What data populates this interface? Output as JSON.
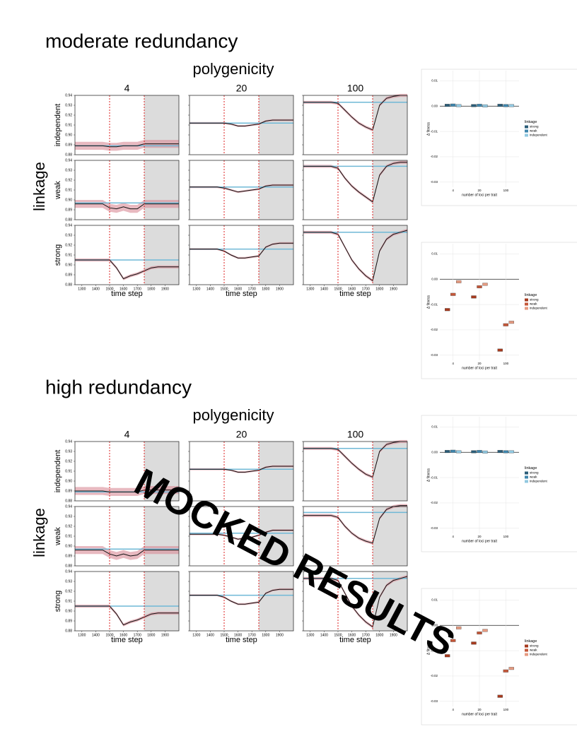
{
  "watermark": "MOCKED RESULTS",
  "sections": [
    {
      "title": "moderate redundancy",
      "col_header": "polygenicity",
      "row_header": "linkage",
      "columns": [
        "4",
        "20",
        "100"
      ],
      "rows": [
        "independent",
        "weak",
        "strong"
      ],
      "x_label": "time step",
      "x": [
        1250,
        1300,
        1350,
        1400,
        1450,
        1500,
        1550,
        1600,
        1650,
        1700,
        1750,
        1800,
        1850,
        1900,
        1950,
        2000
      ],
      "xlim": [
        1250,
        2000
      ],
      "xticks": [
        1300,
        1400,
        1500,
        1600,
        1700,
        1800,
        1900
      ],
      "ylim": [
        0.88,
        0.94
      ],
      "yticks": [
        0.88,
        0.89,
        {
          "value": 0.9,
          "label": "0.90"
        },
        0.91,
        0.92,
        0.93,
        0.94
      ],
      "event_lines": [
        1500,
        1750
      ],
      "panels": [
        [
          {
            "treated": [
              0.889,
              0.889,
              0.889,
              0.889,
              0.889,
              0.888,
              0.888,
              0.889,
              0.889,
              0.889,
              0.891,
              0.891,
              0.891,
              0.891,
              0.891,
              0.891
            ],
            "sd": 0.004,
            "control": 0.889
          },
          {
            "treated": [
              0.912,
              0.912,
              0.912,
              0.912,
              0.912,
              0.912,
              0.911,
              0.909,
              0.909,
              0.91,
              0.911,
              0.914,
              0.915,
              0.915,
              0.915,
              0.915
            ],
            "sd": 0.001,
            "control": 0.912
          },
          {
            "treated": [
              0.933,
              0.933,
              0.933,
              0.933,
              0.933,
              0.932,
              0.925,
              0.918,
              0.912,
              0.908,
              0.905,
              0.93,
              0.937,
              0.939,
              0.94,
              0.94
            ],
            "sd": 0.0015,
            "control": 0.933
          }
        ],
        [
          {
            "treated": [
              0.896,
              0.896,
              0.896,
              0.896,
              0.896,
              0.892,
              0.891,
              0.893,
              0.891,
              0.891,
              0.896,
              0.896,
              0.896,
              0.896,
              0.896,
              0.896
            ],
            "sd": 0.004,
            "control": 0.897
          },
          {
            "treated": [
              0.913,
              0.913,
              0.913,
              0.913,
              0.913,
              0.912,
              0.91,
              0.908,
              0.909,
              0.91,
              0.911,
              0.914,
              0.915,
              0.915,
              0.915,
              0.915
            ],
            "sd": 0.001,
            "control": 0.913
          },
          {
            "treated": [
              0.934,
              0.934,
              0.934,
              0.934,
              0.934,
              0.932,
              0.922,
              0.914,
              0.908,
              0.903,
              0.898,
              0.925,
              0.934,
              0.937,
              0.938,
              0.938
            ],
            "sd": 0.0015,
            "control": 0.934
          }
        ],
        [
          {
            "treated": [
              0.905,
              0.905,
              0.905,
              0.905,
              0.905,
              0.905,
              0.897,
              0.886,
              0.889,
              0.891,
              0.894,
              0.897,
              0.898,
              0.898,
              0.898,
              0.898
            ],
            "sd": 0.0015,
            "control": 0.905
          },
          {
            "treated": [
              0.916,
              0.916,
              0.916,
              0.916,
              0.916,
              0.914,
              0.91,
              0.907,
              0.907,
              0.908,
              0.909,
              0.918,
              0.921,
              0.922,
              0.922,
              0.922
            ],
            "sd": 0.001,
            "control": 0.916
          },
          {
            "treated": [
              0.933,
              0.933,
              0.933,
              0.933,
              0.933,
              0.931,
              0.918,
              0.905,
              0.896,
              0.889,
              0.884,
              0.914,
              0.926,
              0.931,
              0.933,
              0.935
            ],
            "sd": 0.0015,
            "control": 0.933
          }
        ]
      ],
      "boxplots": [
        {
          "type": "box",
          "categories": [
            "4",
            "20",
            "100"
          ],
          "x_label": "number of loci per trait",
          "y_label": "Δ fitness",
          "legend_title": "linkage",
          "ylim": [
            -0.032,
            0.014
          ],
          "yticks": [
            -0.03,
            -0.02,
            -0.01,
            {
              "value": 0,
              "label": "0.00"
            },
            0.01
          ],
          "series": [
            {
              "name": "strong",
              "color": "#2b5d78",
              "values": [
                0.0003,
                0.0002,
                0.0003
              ]
            },
            {
              "name": "weak",
              "color": "#3f86ad",
              "values": [
                0.0004,
                0.0003,
                0.0002
              ]
            },
            {
              "name": "independent",
              "color": "#91c8e0",
              "values": [
                0.0002,
                0.0001,
                0.0002
              ]
            }
          ]
        },
        {
          "type": "box",
          "categories": [
            "4",
            "20",
            "100"
          ],
          "x_label": "number of loci per trait",
          "y_label": "Δ fitness",
          "legend_title": "linkage",
          "ylim": [
            -0.032,
            0.014
          ],
          "yticks": [
            -0.03,
            -0.02,
            -0.01,
            {
              "value": 0,
              "label": "0.00"
            },
            0.01
          ],
          "series": [
            {
              "name": "strong",
              "color": "#a63a1e",
              "values": [
                -0.012,
                -0.007,
                -0.028
              ]
            },
            {
              "name": "weak",
              "color": "#c5583a",
              "values": [
                -0.006,
                -0.003,
                -0.018
              ]
            },
            {
              "name": "independent",
              "color": "#e59a80",
              "values": [
                -0.001,
                -0.002,
                -0.017
              ]
            }
          ]
        }
      ]
    },
    {
      "title": "high redundancy",
      "col_header": "polygenicity",
      "row_header": "linkage",
      "columns": [
        "4",
        "20",
        "100"
      ],
      "rows": [
        "independent",
        "weak",
        "strong"
      ],
      "x_label": "time step",
      "x": [
        1250,
        1300,
        1350,
        1400,
        1450,
        1500,
        1550,
        1600,
        1650,
        1700,
        1750,
        1800,
        1850,
        1900,
        1950,
        2000
      ],
      "xlim": [
        1250,
        2000
      ],
      "xticks": [
        1300,
        1400,
        1500,
        1600,
        1700,
        1800,
        1900
      ],
      "ylim": [
        0.88,
        0.94
      ],
      "yticks": [
        0.88,
        0.89,
        {
          "value": 0.9,
          "label": "0.90"
        },
        0.91,
        0.92,
        0.93,
        0.94
      ],
      "event_lines": [
        1500,
        1750
      ],
      "panels": [
        [
          {
            "treated": [
              0.89,
              0.89,
              0.89,
              0.89,
              0.89,
              0.889,
              0.889,
              0.889,
              0.889,
              0.889,
              0.891,
              0.891,
              0.891,
              0.891,
              0.891,
              0.891
            ],
            "sd": 0.004,
            "control": 0.889
          },
          {
            "treated": [
              0.912,
              0.912,
              0.912,
              0.912,
              0.912,
              0.912,
              0.911,
              0.909,
              0.909,
              0.91,
              0.911,
              0.914,
              0.915,
              0.915,
              0.915,
              0.915
            ],
            "sd": 0.001,
            "control": 0.912
          },
          {
            "treated": [
              0.933,
              0.933,
              0.933,
              0.933,
              0.933,
              0.932,
              0.925,
              0.918,
              0.912,
              0.907,
              0.904,
              0.93,
              0.937,
              0.939,
              0.94,
              0.94
            ],
            "sd": 0.0015,
            "control": 0.933
          }
        ],
        [
          {
            "treated": [
              0.896,
              0.896,
              0.896,
              0.896,
              0.896,
              0.892,
              0.89,
              0.892,
              0.89,
              0.891,
              0.896,
              0.896,
              0.896,
              0.896,
              0.896,
              0.896
            ],
            "sd": 0.004,
            "control": 0.897
          },
          {
            "treated": [
              0.912,
              0.912,
              0.912,
              0.912,
              0.912,
              0.911,
              0.909,
              0.907,
              0.908,
              0.909,
              0.911,
              0.914,
              0.916,
              0.916,
              0.916,
              0.916
            ],
            "sd": 0.001,
            "control": 0.913
          },
          {
            "treated": [
              0.931,
              0.931,
              0.931,
              0.931,
              0.931,
              0.929,
              0.92,
              0.913,
              0.908,
              0.905,
              0.903,
              0.928,
              0.937,
              0.94,
              0.941,
              0.941
            ],
            "sd": 0.0015,
            "control": 0.934
          }
        ],
        [
          {
            "treated": [
              0.905,
              0.905,
              0.905,
              0.905,
              0.905,
              0.905,
              0.897,
              0.886,
              0.889,
              0.891,
              0.894,
              0.897,
              0.898,
              0.898,
              0.898,
              0.898
            ],
            "sd": 0.0015,
            "control": 0.905
          },
          {
            "treated": [
              0.916,
              0.916,
              0.916,
              0.916,
              0.916,
              0.914,
              0.91,
              0.907,
              0.907,
              0.908,
              0.909,
              0.918,
              0.921,
              0.922,
              0.922,
              0.922
            ],
            "sd": 0.001,
            "control": 0.916
          },
          {
            "treated": [
              0.933,
              0.933,
              0.933,
              0.933,
              0.933,
              0.931,
              0.918,
              0.905,
              0.896,
              0.889,
              0.884,
              0.914,
              0.926,
              0.931,
              0.933,
              0.935
            ],
            "sd": 0.0015,
            "control": 0.933
          }
        ]
      ],
      "boxplots": [
        {
          "type": "box",
          "categories": [
            "4",
            "20",
            "100"
          ],
          "x_label": "number of loci per trait",
          "y_label": "Δ fitness",
          "legend_title": "linkage",
          "ylim": [
            -0.032,
            0.014
          ],
          "yticks": [
            -0.03,
            -0.02,
            -0.01,
            {
              "value": 0,
              "label": "0.00"
            },
            0.01
          ],
          "series": [
            {
              "name": "strong",
              "color": "#2b5d78",
              "values": [
                0.0003,
                0.0002,
                0.0003
              ]
            },
            {
              "name": "weak",
              "color": "#3f86ad",
              "values": [
                0.0004,
                0.0003,
                0.0002
              ]
            },
            {
              "name": "independent",
              "color": "#91c8e0",
              "values": [
                0.0002,
                0.0001,
                0.0002
              ]
            }
          ]
        },
        {
          "type": "box",
          "categories": [
            "4",
            "20",
            "100"
          ],
          "x_label": "number of loci per trait",
          "y_label": "Δ fitness",
          "legend_title": "linkage",
          "ylim": [
            -0.032,
            0.014
          ],
          "yticks": [
            -0.03,
            -0.02,
            -0.01,
            {
              "value": 0,
              "label": "0.00"
            },
            0.01
          ],
          "series": [
            {
              "name": "strong",
              "color": "#a63a1e",
              "values": [
                -0.012,
                -0.007,
                -0.028
              ]
            },
            {
              "name": "weak",
              "color": "#c5583a",
              "values": [
                -0.006,
                -0.003,
                -0.018
              ]
            },
            {
              "name": "independent",
              "color": "#e59a80",
              "values": [
                -0.001,
                -0.002,
                -0.017
              ]
            }
          ]
        }
      ]
    }
  ]
}
